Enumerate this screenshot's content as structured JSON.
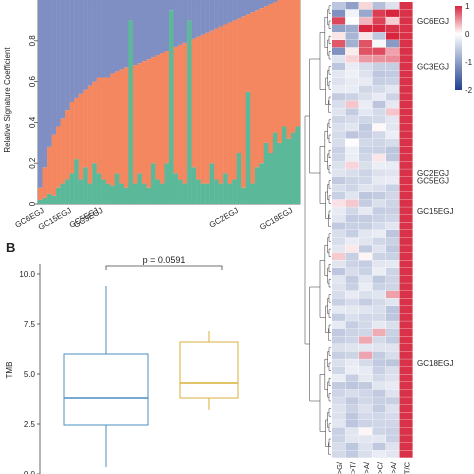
{
  "chart_data": [
    {
      "type": "bar",
      "stacked": true,
      "ylabel": "Relative Signature Coefficient",
      "ylim": [
        0,
        1
      ],
      "yticks": [
        "0",
        "0.2",
        "0.4",
        "0.6",
        "0.8"
      ],
      "xtick_labels": [
        {
          "index": 1,
          "label": "GC6EGJ"
        },
        {
          "index": 7,
          "label": "GC15EGJ"
        },
        {
          "index": 13,
          "label": "GC5EGJ"
        },
        {
          "index": 14,
          "label": "GC3EGJ"
        },
        {
          "index": 44,
          "label": "GC2EGJ"
        },
        {
          "index": 56,
          "label": "GC18EGJ"
        }
      ],
      "series": [
        {
          "color": "#5bb99a",
          "values": [
            0.02,
            0.03,
            0.05,
            0.04,
            0.08,
            0.1,
            0.12,
            0.15,
            0.22,
            0.12,
            0.18,
            0.1,
            0.2,
            0.15,
            0.12,
            0.1,
            0.09,
            0.15,
            0.1,
            0.08,
            0.9,
            0.1,
            0.15,
            0.1,
            0.08,
            0.2,
            0.12,
            0.1,
            0.2,
            0.95,
            0.15,
            0.12,
            0.1,
            0.9,
            0.18,
            0.12,
            0.1,
            0.1,
            0.2,
            0.12,
            0.1,
            0.15,
            0.1,
            0.12,
            0.25,
            0.08,
            0.55,
            0.1,
            0.18,
            0.2,
            0.3,
            0.25,
            0.35,
            0.3,
            0.38,
            0.32,
            0.35,
            0.38
          ]
        },
        {
          "color": "#f4875f",
          "values": [
            0.06,
            0.15,
            0.23,
            0.3,
            0.3,
            0.32,
            0.34,
            0.35,
            0.3,
            0.42,
            0.38,
            0.48,
            0.4,
            0.47,
            0.5,
            0.52,
            0.55,
            0.5,
            0.56,
            0.59,
            0.0,
            0.58,
            0.54,
            0.6,
            0.63,
            0.52,
            0.61,
            0.64,
            0.55,
            0.0,
            0.62,
            0.66,
            0.69,
            0.0,
            0.63,
            0.7,
            0.73,
            0.74,
            0.65,
            0.74,
            0.77,
            0.73,
            0.79,
            0.78,
            0.66,
            0.84,
            0.38,
            0.84,
            0.77,
            0.76,
            0.67,
            0.73,
            0.64,
            0.7,
            0.62,
            0.68,
            0.65,
            0.62
          ]
        },
        {
          "color": "#7f8fc4",
          "values": [
            0.92,
            0.82,
            0.72,
            0.66,
            0.62,
            0.58,
            0.54,
            0.5,
            0.48,
            0.46,
            0.44,
            0.42,
            0.4,
            0.38,
            0.38,
            0.38,
            0.36,
            0.35,
            0.34,
            0.33,
            0.1,
            0.32,
            0.31,
            0.3,
            0.29,
            0.28,
            0.27,
            0.26,
            0.25,
            0.05,
            0.23,
            0.22,
            0.21,
            0.1,
            0.19,
            0.18,
            0.17,
            0.16,
            0.15,
            0.14,
            0.13,
            0.12,
            0.11,
            0.1,
            0.09,
            0.08,
            0.07,
            0.06,
            0.05,
            0.04,
            0.03,
            0.02,
            0.01,
            0.0,
            0.0,
            0.0,
            0.0,
            0.0
          ]
        }
      ]
    },
    {
      "type": "box",
      "panel_label": "B",
      "ylabel": "TMB",
      "ylim": [
        0,
        10.5
      ],
      "yticks": [
        "0.0",
        "2.5",
        "5.0",
        "7.5",
        "10.0"
      ],
      "annotation": "p = 0.0591",
      "boxes": [
        {
          "color": "#4d8fc1",
          "min": 0.35,
          "q1": 2.45,
          "median": 3.8,
          "q3": 6.0,
          "max": 9.4
        },
        {
          "color": "#d9b23a",
          "min": 3.2,
          "q1": 3.8,
          "median": 4.55,
          "q3": 6.6,
          "max": 7.15
        }
      ]
    },
    {
      "type": "heatmap",
      "rows": 60,
      "columns": 6,
      "column_labels": [
        "C>G/",
        "C>T/",
        "T>A/",
        "T>C/",
        "C>A/",
        "C>T/C"
      ],
      "row_labels": [
        {
          "row": 2,
          "label": "GC6EGJ"
        },
        {
          "row": 8,
          "label": "GC3EGJ"
        },
        {
          "row": 22,
          "label": "GC2EGJ"
        },
        {
          "row": 23,
          "label": "GC5EGJ"
        },
        {
          "row": 27,
          "label": "GC15EGJ"
        },
        {
          "row": 47,
          "label": "GC18EGJ"
        }
      ],
      "colorbar": {
        "ticks": [
          "1",
          "0",
          "-1",
          "-2"
        ],
        "colors": [
          "#d7263d",
          "#ffffff",
          "#1f3f8f"
        ]
      }
    }
  ]
}
